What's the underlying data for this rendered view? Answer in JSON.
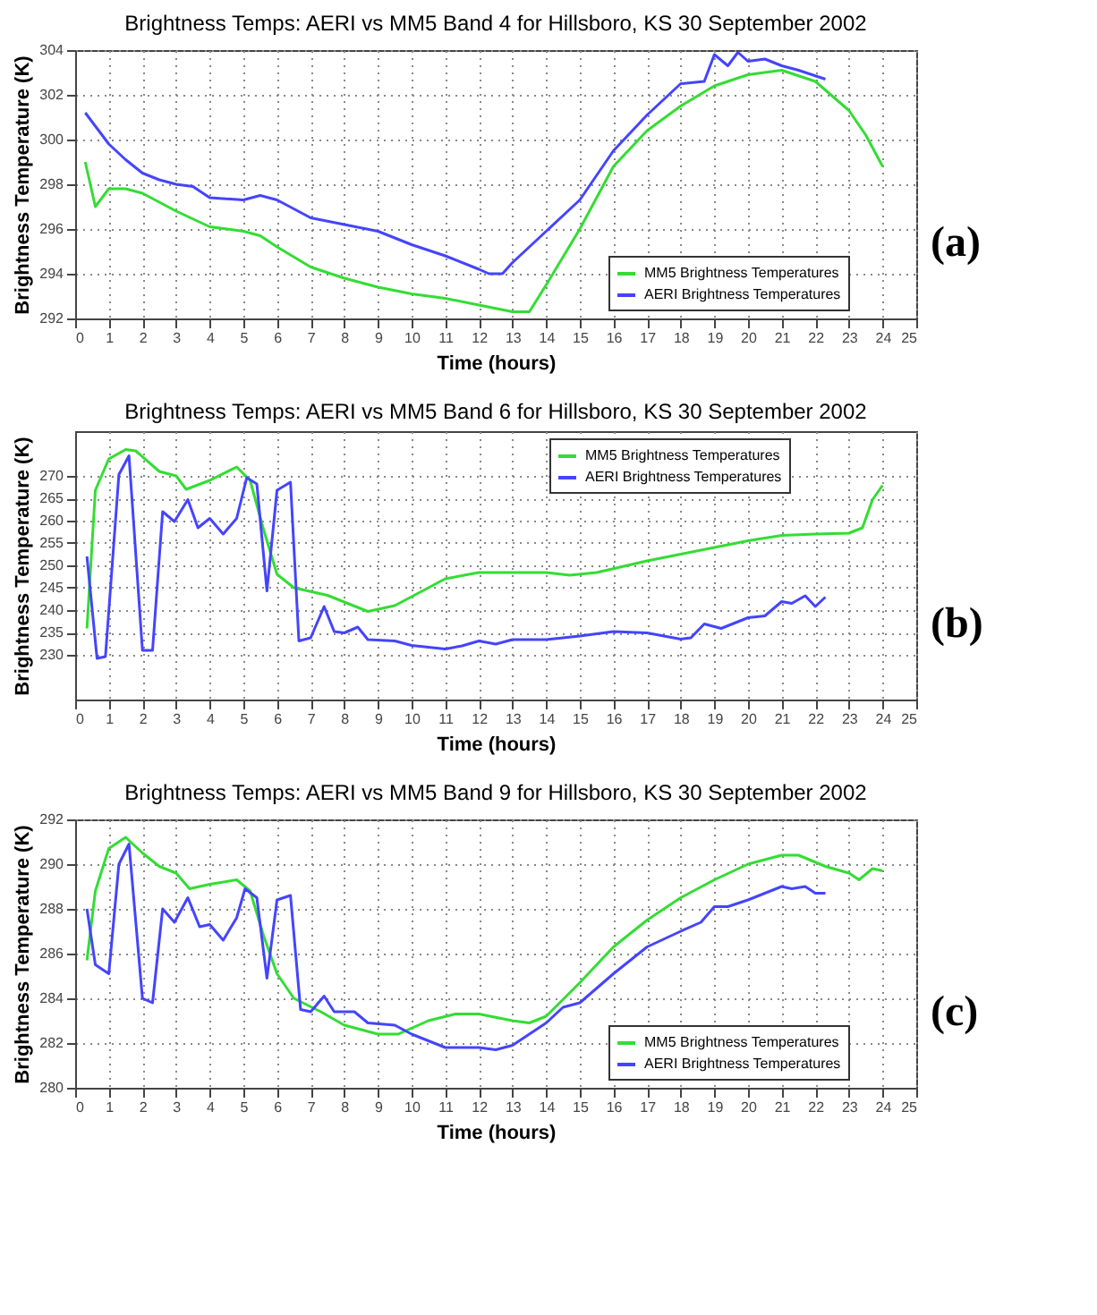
{
  "chart_data": [
    {
      "type": "line",
      "title": "Brightness Temps: AERI vs MM5 Band 4 for Hillsboro, KS 30 September 2002",
      "xlabel": "Time (hours)",
      "ylabel": "Brightness Temperature (K)",
      "xlim": [
        0,
        25
      ],
      "xticks": [
        0,
        1,
        2,
        3,
        4,
        5,
        6,
        7,
        8,
        9,
        10,
        11,
        12,
        13,
        14,
        15,
        16,
        17,
        18,
        19,
        20,
        21,
        22,
        23,
        24,
        25
      ],
      "ylim": [
        292,
        304
      ],
      "yticks": [
        292,
        294,
        296,
        298,
        300,
        302,
        304
      ],
      "grid": true,
      "legend": "bottom right",
      "marker": "none",
      "line_style": "solid",
      "annotations": [
        "(a)"
      ],
      "series": [
        {
          "name": "MM5 Brightness Temperatures",
          "color": "#33dd33",
          "x": [
            0.3,
            0.6,
            1,
            1.5,
            2,
            3,
            4,
            5,
            5.5,
            6,
            7,
            8,
            9,
            10,
            11,
            12,
            13,
            13.5,
            14,
            15,
            16,
            17,
            18,
            19,
            20,
            21,
            22,
            23,
            23.5,
            24
          ],
          "values": [
            299,
            297,
            297.8,
            297.8,
            297.6,
            296.8,
            296.1,
            295.9,
            295.7,
            295.2,
            294.3,
            293.8,
            293.4,
            293.1,
            292.9,
            292.6,
            292.3,
            292.3,
            293.5,
            296,
            298.8,
            300.4,
            301.5,
            302.4,
            302.9,
            303.1,
            302.6,
            301.3,
            300.2,
            298.8
          ]
        },
        {
          "name": "AERI Brightness Temperatures",
          "color": "#4444ff",
          "x": [
            0.3,
            0.7,
            1,
            1.5,
            2,
            2.5,
            3,
            3.5,
            4,
            5,
            5.5,
            6,
            7,
            8,
            9,
            10,
            11,
            12,
            12.3,
            12.7,
            13,
            14,
            15,
            16,
            17,
            18,
            18.7,
            19,
            19.4,
            19.7,
            20,
            20.5,
            21,
            21.5,
            22.3
          ],
          "values": [
            301.2,
            300.4,
            299.8,
            299.1,
            298.5,
            298.2,
            298,
            297.9,
            297.4,
            297.3,
            297.5,
            297.3,
            296.5,
            296.2,
            295.9,
            295.3,
            294.8,
            294.2,
            294,
            294,
            294.5,
            295.9,
            297.3,
            299.5,
            301.1,
            302.5,
            302.6,
            303.8,
            303.3,
            303.9,
            303.5,
            303.6,
            303.3,
            303.1,
            302.7
          ]
        }
      ]
    },
    {
      "type": "line",
      "title": "Brightness Temps: AERI vs MM5 Band 6 for Hillsboro, KS 30 September 2002",
      "xlabel": "Time (hours)",
      "ylabel": "Brightness Temperature (K)",
      "xlim": [
        0,
        25
      ],
      "xticks": [
        0,
        1,
        2,
        3,
        4,
        5,
        6,
        7,
        8,
        9,
        10,
        11,
        12,
        13,
        14,
        15,
        16,
        17,
        18,
        19,
        20,
        21,
        22,
        23,
        24,
        25
      ],
      "ylim": [
        220,
        280
      ],
      "yticks": [
        230,
        235,
        240,
        245,
        250,
        255,
        260,
        265,
        270
      ],
      "grid": true,
      "legend": "top right",
      "marker": "none",
      "line_style": "solid",
      "annotations": [
        "(b)"
      ],
      "series": [
        {
          "name": "MM5 Brightness Temperatures",
          "color": "#33dd33",
          "x": [
            0.35,
            0.6,
            1,
            1.5,
            1.8,
            2.5,
            3,
            3.3,
            4,
            4.8,
            5.2,
            5.6,
            6,
            6.5,
            7.5,
            8.7,
            9.5,
            10.5,
            11,
            12,
            14,
            14.7,
            15.5,
            17,
            18,
            19,
            20,
            21,
            22,
            23,
            23.4,
            23.7,
            24
          ],
          "values": [
            235.9,
            266.8,
            273.8,
            275.9,
            275.6,
            271,
            270,
            267,
            269,
            272,
            269,
            258,
            248,
            245,
            243.3,
            239.7,
            241,
            245,
            247,
            248.4,
            248.4,
            247.8,
            248.4,
            251,
            252.5,
            254,
            255.5,
            256.7,
            257,
            257.2,
            258.4,
            264.7,
            267.9
          ]
        },
        {
          "name": "AERI Brightness Temperatures",
          "color": "#4444ff",
          "x": [
            0.35,
            0.65,
            0.9,
            1.3,
            1.6,
            2,
            2.3,
            2.6,
            2.95,
            3.35,
            3.65,
            4,
            4.4,
            4.8,
            5.1,
            5.4,
            5.7,
            6,
            6.4,
            6.65,
            7,
            7.4,
            7.7,
            8,
            8.4,
            8.7,
            9.5,
            10,
            11,
            11.5,
            12,
            12.5,
            13,
            14,
            15,
            16,
            17,
            18,
            18.3,
            18.7,
            19.2,
            20,
            20.5,
            21,
            21.3,
            21.7,
            22,
            22.3
          ],
          "values": [
            252,
            229.2,
            229.6,
            270.3,
            274.5,
            231,
            231,
            262,
            259.8,
            264.7,
            258.4,
            260.5,
            257,
            260.5,
            269.6,
            268.2,
            244.3,
            266.8,
            268.6,
            233.1,
            233.8,
            240.8,
            235.2,
            234.9,
            236.2,
            233.4,
            233.1,
            232.1,
            231.3,
            232,
            233.1,
            232.4,
            233.4,
            233.4,
            234.2,
            235.2,
            234.9,
            233.5,
            233.8,
            236.9,
            235.9,
            238.3,
            238.7,
            241.9,
            241.5,
            243.2,
            240.8,
            242.9
          ]
        }
      ]
    },
    {
      "type": "line",
      "title": "Brightness Temps: AERI vs MM5 Band 9 for Hillsboro, KS 30 September 2002",
      "xlabel": "Time (hours)",
      "ylabel": "Brightness Temperature (K)",
      "xlim": [
        0,
        25
      ],
      "xticks": [
        0,
        1,
        2,
        3,
        4,
        5,
        6,
        7,
        8,
        9,
        10,
        11,
        12,
        13,
        14,
        15,
        16,
        17,
        18,
        19,
        20,
        21,
        22,
        23,
        24,
        25
      ],
      "ylim": [
        280,
        292
      ],
      "yticks": [
        280,
        282,
        284,
        286,
        288,
        290,
        292
      ],
      "grid": true,
      "legend": "bottom right",
      "marker": "none",
      "line_style": "solid",
      "annotations": [
        "(c)"
      ],
      "series": [
        {
          "name": "MM5 Brightness Temperatures",
          "color": "#33dd33",
          "x": [
            0.35,
            0.6,
            1,
            1.5,
            2,
            2.5,
            3,
            3.4,
            4,
            4.8,
            5.2,
            5.6,
            6,
            6.5,
            7.3,
            8,
            9,
            9.6,
            10.5,
            11.3,
            12,
            13,
            13.5,
            14,
            15,
            16,
            17,
            18,
            19,
            20,
            21,
            21.5,
            22.3,
            23,
            23.3,
            23.7,
            24
          ],
          "values": [
            285.7,
            288.8,
            290.7,
            291.2,
            290.5,
            289.9,
            289.6,
            288.9,
            289.1,
            289.3,
            288.8,
            286.8,
            285.1,
            284,
            283.4,
            282.8,
            282.4,
            282.4,
            283,
            283.3,
            283.3,
            283,
            282.9,
            283.2,
            284.7,
            286.3,
            287.5,
            288.5,
            289.3,
            290,
            290.4,
            290.4,
            289.9,
            289.6,
            289.3,
            289.8,
            289.7
          ]
        },
        {
          "name": "AERI Brightness Temperatures",
          "color": "#4444ff",
          "x": [
            0.35,
            0.6,
            1,
            1.3,
            1.6,
            2,
            2.3,
            2.6,
            2.95,
            3.35,
            3.7,
            4,
            4.4,
            4.8,
            5.05,
            5.4,
            5.7,
            6,
            6.4,
            6.7,
            7,
            7.4,
            7.7,
            8.3,
            8.7,
            9.5,
            10,
            11,
            12,
            12.5,
            13,
            14,
            14.5,
            15,
            16,
            17,
            18,
            18.6,
            19,
            19.4,
            20,
            21,
            21.3,
            21.7,
            22,
            22.3
          ],
          "values": [
            288,
            285.5,
            285.1,
            290,
            290.9,
            284,
            283.8,
            288,
            287.4,
            288.5,
            287.2,
            287.3,
            286.6,
            287.6,
            288.9,
            288.5,
            284.9,
            288.4,
            288.6,
            283.5,
            283.4,
            284.1,
            283.4,
            283.4,
            282.9,
            282.8,
            282.4,
            281.8,
            281.8,
            281.7,
            281.9,
            282.9,
            283.6,
            283.8,
            285.1,
            286.3,
            287,
            287.4,
            288.1,
            288.1,
            288.4,
            289,
            288.9,
            289,
            288.7,
            288.7
          ]
        }
      ]
    }
  ]
}
